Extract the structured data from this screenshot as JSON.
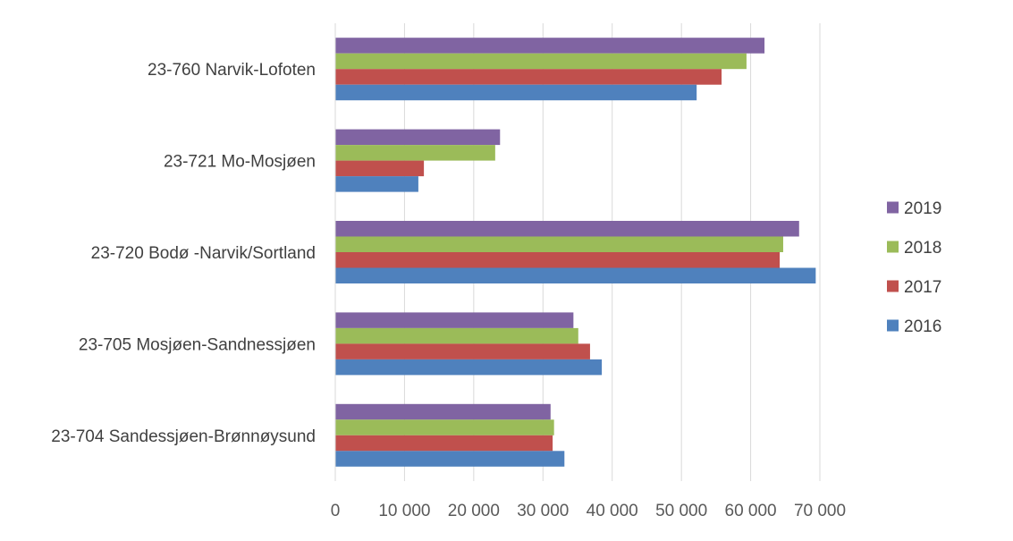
{
  "chart_data": {
    "type": "bar",
    "orientation": "horizontal",
    "categories": [
      "23-760 Narvik-Lofoten",
      "23-721 Mo-Mosjøen",
      "23-720 Bodø -Narvik/Sortland",
      "23-705 Mosjøen-Sandnessjøen",
      "23-704 Sandessjøen-Brønnøysund"
    ],
    "series": [
      {
        "name": "2016",
        "color": "#4f81bd",
        "values": [
          52200,
          12000,
          69400,
          38500,
          33100
        ]
      },
      {
        "name": "2017",
        "color": "#c0504d",
        "values": [
          55800,
          12800,
          64200,
          36800,
          31400
        ]
      },
      {
        "name": "2018",
        "color": "#9bbb59",
        "values": [
          59400,
          23100,
          64700,
          35100,
          31600
        ]
      },
      {
        "name": "2019",
        "color": "#8064a2",
        "values": [
          62000,
          23800,
          67000,
          34400,
          31100
        ]
      }
    ],
    "xlim": [
      0,
      70000
    ],
    "xticks": [
      0,
      10000,
      20000,
      30000,
      40000,
      50000,
      60000,
      70000
    ],
    "xtick_labels": [
      "0",
      "10 000",
      "20 000",
      "30 000",
      "40 000",
      "50 000",
      "60 000",
      "70 000"
    ],
    "grid": "vertical",
    "legend_position": "right",
    "legend_order": [
      "2019",
      "2018",
      "2017",
      "2016"
    ],
    "title": "",
    "xlabel": "",
    "ylabel": ""
  }
}
